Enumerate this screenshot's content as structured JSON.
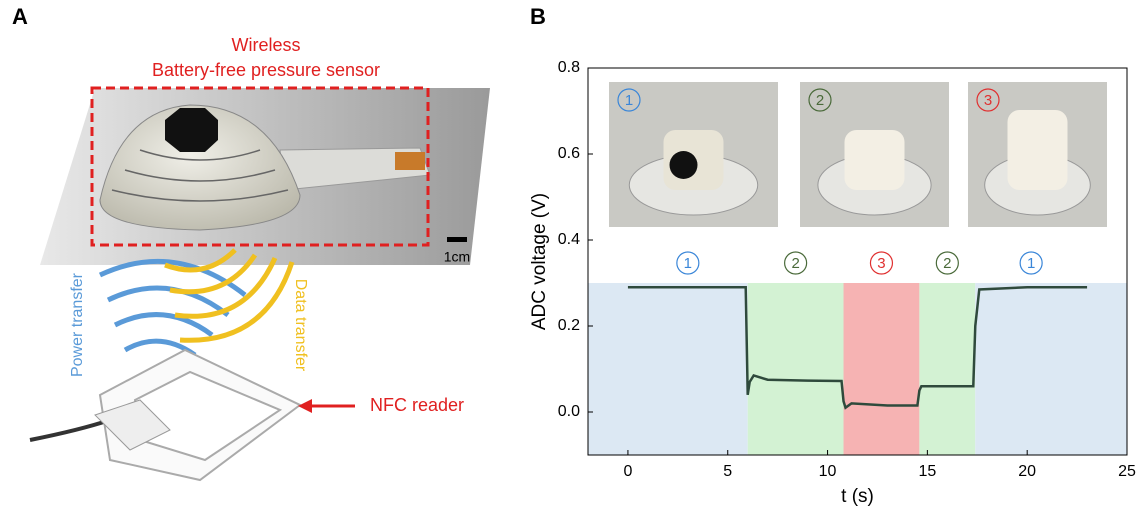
{
  "panel_a": {
    "letter": "A",
    "title_line1": "Wireless",
    "title_line2": "Battery-free pressure sensor",
    "scale": "1cm",
    "power": "Power transfer",
    "data": "Data transfer",
    "reader": "NFC reader"
  },
  "chart_data": {
    "type": "line",
    "letter": "B",
    "xlabel": "t (s)",
    "ylabel": "ADC voltage (V)",
    "xlim": [
      -2,
      25
    ],
    "ylim": [
      -0.1,
      0.8
    ],
    "xticks": [
      0,
      5,
      10,
      15,
      20,
      25
    ],
    "yticks": [
      {
        "value": 0,
        "label": "0.0"
      },
      0.2,
      0.4,
      0.6,
      0.8
    ],
    "regions": [
      {
        "x0": -2,
        "x1": 6,
        "label": "1",
        "color": "#3a86d8",
        "fill": "#dce8f3"
      },
      {
        "x0": 6,
        "x1": 10.8,
        "label": "2",
        "color": "#4a6a3a",
        "fill": "#d3f2d3"
      },
      {
        "x0": 10.8,
        "x1": 14.6,
        "label": "3",
        "color": "#e03030",
        "fill": "#f6b3b3"
      },
      {
        "x0": 14.6,
        "x1": 17.4,
        "label": "2",
        "color": "#4a6a3a",
        "fill": "#d3f2d3"
      },
      {
        "x0": 17.4,
        "x1": 25,
        "label": "1",
        "color": "#3a86d8",
        "fill": "#dce8f3"
      }
    ],
    "region_top": 0.3,
    "insets": [
      "1",
      "2",
      "3"
    ],
    "series": [
      {
        "color": "#2f4a3c",
        "x": [
          0,
          3,
          5.9,
          6.0,
          6.1,
          6.3,
          7,
          9,
          10.7,
          10.8,
          10.9,
          11.2,
          13,
          14.5,
          14.6,
          14.7,
          16,
          17.3,
          17.4,
          17.6,
          20,
          23
        ],
        "values": [
          0.29,
          0.29,
          0.29,
          0.04,
          0.07,
          0.085,
          0.075,
          0.073,
          0.072,
          0.025,
          0.01,
          0.02,
          0.015,
          0.015,
          0.05,
          0.06,
          0.06,
          0.06,
          0.2,
          0.285,
          0.29,
          0.29
        ]
      }
    ]
  }
}
